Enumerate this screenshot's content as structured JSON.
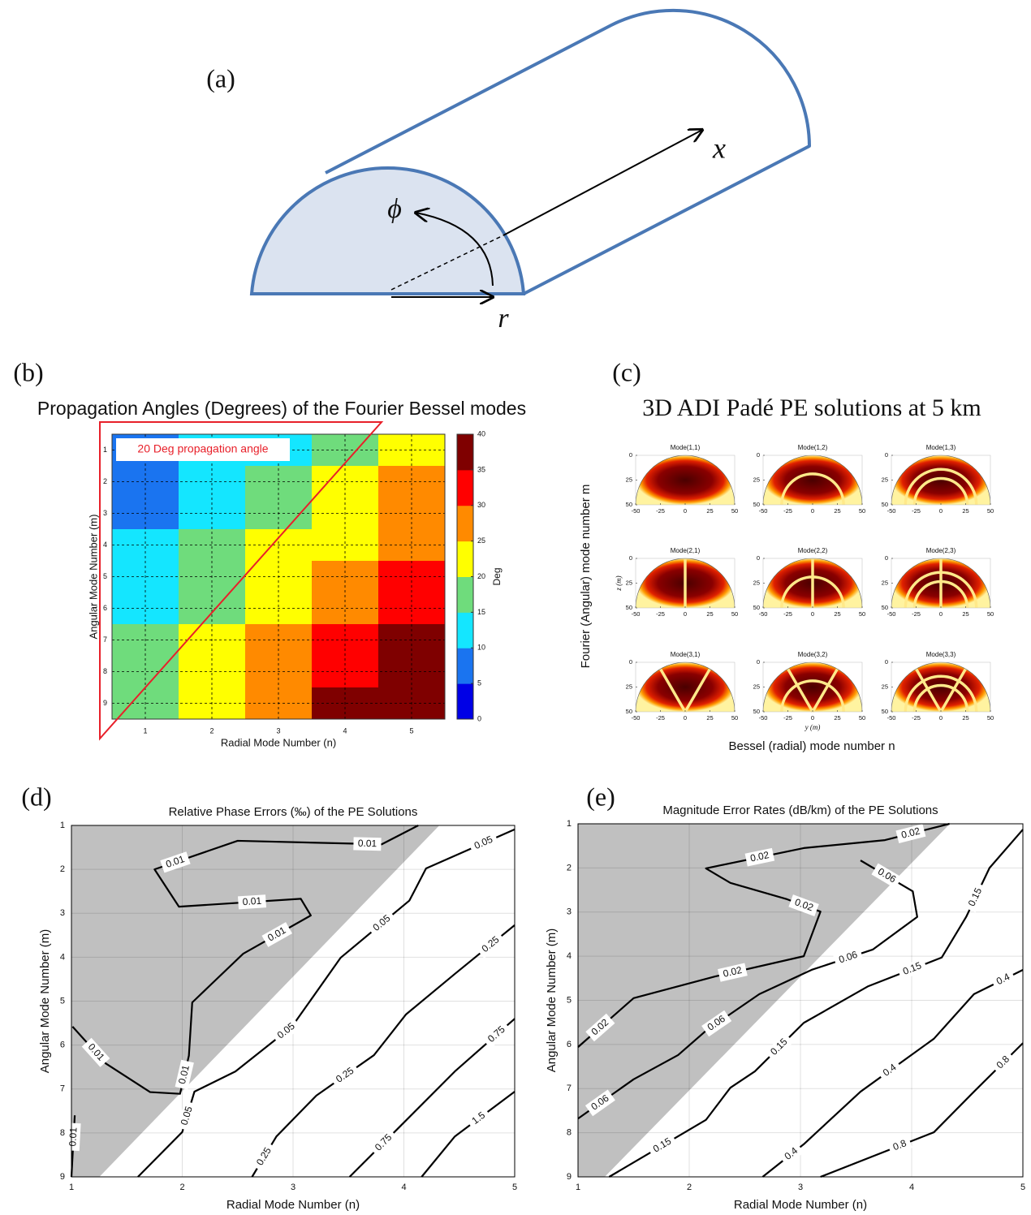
{
  "diagram": {
    "panel_label": "(a)",
    "x_label": "x",
    "phi_label": "ϕ",
    "r_label": "r"
  },
  "chart_data": [
    {
      "type": "heatmap",
      "panel_label": "(b)",
      "title": "Propagation Angles (Degrees) of the Fourier Bessel modes",
      "annotation": "20 Deg propagation angle",
      "x_label": "Radial Mode Number (n)",
      "y_label": "Angular Mode Number (m)",
      "colorbar_label": "Deg",
      "x": [
        1,
        2,
        3,
        4,
        5
      ],
      "y": [
        1,
        2,
        3,
        4,
        5,
        6,
        7,
        8,
        9
      ],
      "z": [
        [
          7,
          12,
          13,
          17,
          22
        ],
        [
          7,
          11,
          17,
          22,
          27
        ],
        [
          8,
          12,
          17,
          22,
          27
        ],
        [
          12,
          17,
          21,
          23,
          28
        ],
        [
          13,
          17,
          22,
          28,
          32
        ],
        [
          14,
          18,
          23,
          28,
          33
        ],
        [
          17,
          22,
          27,
          32,
          37
        ],
        [
          18,
          23,
          28,
          33,
          38
        ],
        [
          19,
          24,
          29,
          36,
          39
        ]
      ],
      "xlim": [
        0.5,
        5.5
      ],
      "ylim": [
        0.5,
        9.5
      ],
      "yreverse": true,
      "xticks": [
        1,
        2,
        3,
        4,
        5
      ],
      "yticks": [
        1,
        2,
        3,
        4,
        5,
        6,
        7,
        8,
        9
      ],
      "grid": true,
      "clim": [
        0,
        40
      ],
      "cticks": [
        0,
        5,
        10,
        15,
        20,
        25,
        30,
        35,
        40
      ],
      "colors": [
        "#0000e6",
        "#1a74f0",
        "#14e6ff",
        "#6fdc7c",
        "#ffff00",
        "#ff8a00",
        "#ff0000",
        "#7f0000"
      ]
    },
    {
      "type": "image-grid",
      "panel_label": "(c)",
      "title": "3D ADI Padé PE solutions at 5 km",
      "x_label": "Bessel (radial) mode number  n",
      "y_label": "Fourier (Angular) mode number  m",
      "subplot_titles": [
        [
          "Mode(1,1)",
          "Mode(1,2)",
          "Mode(1,3)"
        ],
        [
          "Mode(2,1)",
          "Mode(2,2)",
          "Mode(2,3)"
        ],
        [
          "Mode(3,1)",
          "Mode(3,2)",
          "Mode(3,3)"
        ]
      ],
      "subplot_xlabel": "y (m)",
      "subplot_ylabel": "z (m)",
      "xlim": [
        -50,
        50
      ],
      "xticks": [
        -50,
        -25,
        0,
        25,
        50
      ],
      "ylim": [
        0,
        50
      ],
      "yreverse": true,
      "yticks": [
        0,
        25,
        50
      ]
    },
    {
      "type": "contour",
      "panel_label": "(d)",
      "title": "Relative Phase Errors (‰) of the PE Solutions",
      "x_label": "Radial Mode Number (n)",
      "y_label": "Angular Mode Number (m)",
      "xlim": [
        1,
        5
      ],
      "ylim": [
        1,
        9
      ],
      "yreverse": true,
      "xticks": [
        1,
        2,
        3,
        4,
        5
      ],
      "yticks": [
        1,
        2,
        3,
        4,
        5,
        6,
        7,
        8,
        9
      ],
      "grid": true,
      "contours": [
        {
          "level": 0.01,
          "x": [
            4.13,
            3.8,
            2.5,
            1.75,
            1.97,
            3.07,
            3.16,
            2.55,
            2.09,
            2.06,
            1.98,
            1.71,
            1.31,
            1.01
          ],
          "y": [
            1,
            1.43,
            1.35,
            2.0,
            2.85,
            2.67,
            3.05,
            3.92,
            5.03,
            6.24,
            7.11,
            7.07,
            6.42,
            5.58
          ]
        },
        {
          "level": 0.01,
          "x": [
            1.03,
            1.0
          ],
          "y": [
            7.6,
            9
          ]
        },
        {
          "level": 0.05,
          "x": [
            5,
            4.2,
            4.05,
            3.43,
            2.99,
            2.48,
            2.11,
            2.0,
            1.6
          ],
          "y": [
            1.09,
            1.98,
            2.71,
            4.01,
            5.58,
            6.6,
            7.06,
            7.98,
            9
          ]
        },
        {
          "level": 0.25,
          "x": [
            5,
            4.46,
            4.02,
            3.73,
            3.21,
            2.85,
            2.63
          ],
          "y": [
            3.27,
            4.38,
            5.3,
            6.23,
            7.15,
            8.08,
            9
          ]
        },
        {
          "level": 0.75,
          "x": [
            5,
            4.46,
            3.95,
            3.51
          ],
          "y": [
            5.4,
            6.6,
            7.89,
            9
          ]
        },
        {
          "level": 1.5,
          "x": [
            5,
            4.46,
            4.16
          ],
          "y": [
            7.06,
            8.08,
            9
          ]
        }
      ]
    },
    {
      "type": "contour",
      "panel_label": "(e)",
      "title": "Magnitude Error Rates (dB/km) of the PE Solutions",
      "x_label": "Radial Mode Number (n)",
      "y_label": "Angular Mode Number (m)",
      "xlim": [
        1,
        5
      ],
      "ylim": [
        1,
        9
      ],
      "yreverse": true,
      "xticks": [
        1,
        2,
        3,
        4,
        5
      ],
      "yticks": [
        1,
        2,
        3,
        4,
        5,
        6,
        7,
        8,
        9
      ],
      "grid": true,
      "contours": [
        {
          "level": 0.02,
          "x": [
            4.34,
            3.76,
            3.03,
            2.15,
            2.37,
            2.88,
            3.18,
            3.03,
            2.23,
            1.5,
            1
          ],
          "y": [
            1,
            1.37,
            1.55,
            2.01,
            2.34,
            2.71,
            2.99,
            4.0,
            4.46,
            4.95,
            6.06
          ]
        },
        {
          "level": 0.06,
          "x": [
            3.54,
            4.01,
            4.05,
            3.65,
            3.1,
            2.63,
            2.15,
            1.9,
            1.5,
            1
          ],
          "y": [
            1.83,
            2.53,
            3.11,
            3.85,
            4.31,
            4.86,
            5.69,
            6.24,
            6.79,
            7.68
          ]
        },
        {
          "level": 0.15,
          "x": [
            5,
            4.7,
            4.49,
            4.27,
            3.61,
            3.03,
            2.59,
            2.37,
            2.15,
            1.28
          ],
          "y": [
            1.13,
            2.0,
            3.11,
            4.03,
            4.68,
            5.51,
            6.61,
            6.98,
            7.71,
            9
          ]
        },
        {
          "level": 0.4,
          "x": [
            5,
            4.56,
            4.2,
            3.54,
            3.03,
            2.66
          ],
          "y": [
            4.31,
            4.86,
            5.87,
            7.07,
            8.26,
            9
          ]
        },
        {
          "level": 0.8,
          "x": [
            5,
            4.56,
            4.2,
            3.18
          ],
          "y": [
            5.97,
            7.07,
            7.99,
            9
          ]
        }
      ]
    }
  ]
}
